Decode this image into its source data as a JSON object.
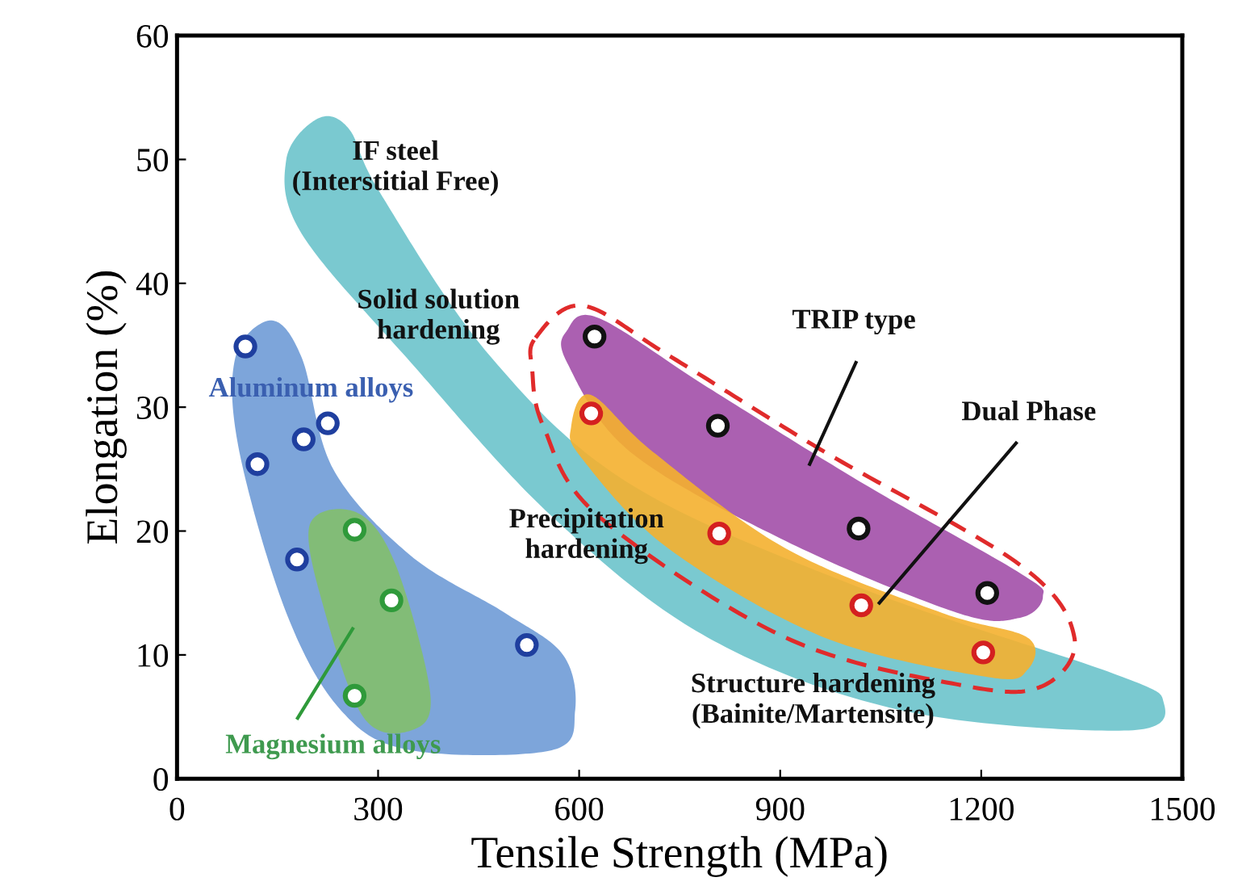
{
  "chart_data": {
    "type": "scatter",
    "xlabel": "Tensile Strength (MPa)",
    "ylabel": "Elongation (%)",
    "xlim": [
      0,
      1500
    ],
    "ylim": [
      0,
      60
    ],
    "xticks": [
      0,
      300,
      600,
      900,
      1200,
      1500
    ],
    "yticks": [
      0,
      10,
      20,
      30,
      40,
      50,
      60
    ],
    "grid": false,
    "legend": false,
    "marker": "circle",
    "series": [
      {
        "name": "Aluminum alloys",
        "color": "#1f3f9f",
        "x": [
          102,
          120,
          189,
          225,
          179,
          522
        ],
        "values": [
          34.9,
          25.4,
          27.4,
          28.7,
          17.7,
          10.8
        ]
      },
      {
        "name": "Magnesium alloys",
        "color": "#2f9a3a",
        "x": [
          265,
          320,
          265
        ],
        "values": [
          20.1,
          14.4,
          6.7
        ]
      },
      {
        "name": "TRIP type",
        "color": "#111111",
        "x": [
          623,
          807,
          1017,
          1209
        ],
        "values": [
          35.7,
          28.5,
          20.2,
          15.0
        ]
      },
      {
        "name": "Dual Phase",
        "color": "#d42020",
        "x": [
          618,
          809,
          1021,
          1203
        ],
        "values": [
          29.5,
          19.8,
          14.0,
          10.2
        ]
      }
    ],
    "annotations": [
      "IF steel\n(Interstitial Free)",
      "Solid solution\nhardening",
      "Precipitation\nhardening",
      "Structure hardening\n(Bainite/Martensite)"
    ]
  }
}
